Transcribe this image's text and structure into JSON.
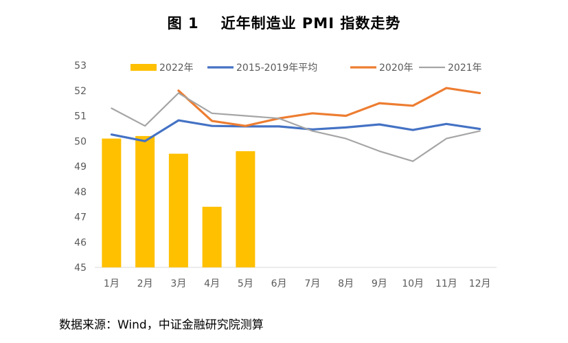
{
  "title": {
    "figure": "图 1",
    "text": "近年制造业 PMI 指数走势"
  },
  "source": "数据来源：Wind，中证金融研究院测算",
  "chart_data": {
    "type": "bar",
    "categories": [
      "1月",
      "2月",
      "3月",
      "4月",
      "5月",
      "6月",
      "7月",
      "8月",
      "9月",
      "10月",
      "11月",
      "12月"
    ],
    "ylim": [
      45,
      53
    ],
    "yticks": [
      45,
      46,
      47,
      48,
      49,
      50,
      51,
      52,
      53
    ],
    "grid": false,
    "legend_position": "top",
    "series": [
      {
        "name": "2022年",
        "kind": "bar",
        "color": "#FFC000",
        "values": [
          50.1,
          50.2,
          49.5,
          47.4,
          49.6,
          null,
          null,
          null,
          null,
          null,
          null,
          null
        ]
      },
      {
        "name": "2015-2019年平均",
        "kind": "line",
        "color": "#4472C4",
        "values": [
          50.26,
          50.0,
          50.82,
          50.6,
          50.58,
          50.58,
          50.46,
          50.54,
          50.66,
          50.44,
          50.68,
          50.48
        ]
      },
      {
        "name": "2020年",
        "kind": "line",
        "color": "#ED7D31",
        "values": [
          null,
          null,
          52.0,
          50.8,
          50.6,
          50.9,
          51.1,
          51.0,
          51.5,
          51.4,
          52.1,
          51.9
        ]
      },
      {
        "name": "2021年",
        "kind": "line",
        "color": "#A5A5A5",
        "values": [
          51.3,
          50.6,
          51.9,
          51.1,
          51.0,
          50.9,
          50.4,
          50.1,
          49.6,
          49.2,
          50.1,
          50.4
        ]
      }
    ]
  }
}
